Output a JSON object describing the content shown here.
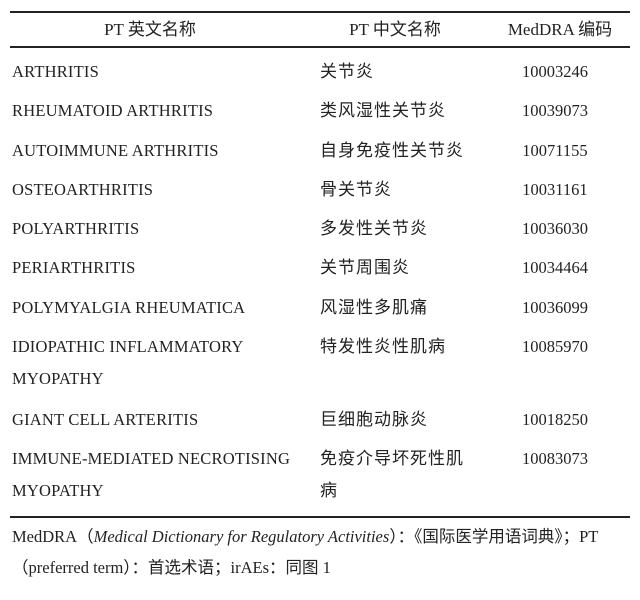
{
  "table": {
    "headers": [
      "PT 英文名称",
      "PT 中文名称",
      "MedDRA 编码"
    ],
    "rows": [
      {
        "en": "ARTHRITIS",
        "zh": "关节炎",
        "code": "10003246"
      },
      {
        "en": "RHEUMATOID ARTHRITIS",
        "zh": "类风湿性关节炎",
        "code": "10039073"
      },
      {
        "en": "AUTOIMMUNE ARTHRITIS",
        "zh": "自身免疫性关节炎",
        "code": "10071155"
      },
      {
        "en": "OSTEOARTHRITIS",
        "zh": "骨关节炎",
        "code": "10031161"
      },
      {
        "en": "POLYARTHRITIS",
        "zh": "多发性关节炎",
        "code": "10036030"
      },
      {
        "en": "PERIARTHRITIS",
        "zh": "关节周围炎",
        "code": "10034464"
      },
      {
        "en": "POLYMYALGIA RHEUMATICA",
        "zh": "风湿性多肌痛",
        "code": "10036099"
      },
      {
        "en": "IDIOPATHIC INFLAMMATORY MYOPATHY",
        "zh": "特发性炎性肌病",
        "code": "10085970"
      },
      {
        "en": "GIANT CELL ARTERITIS",
        "zh": "巨细胞动脉炎",
        "code": "10018250"
      },
      {
        "en": "IMMUNE-MEDIATED NECROTISING MYOPATHY",
        "zh": "免疫介导坏死性肌病",
        "code": "10083073"
      }
    ]
  },
  "note": {
    "part1": "MedDRA（",
    "italic": "Medical Dictionary for Regulatory Activities",
    "part2": "）：《国际医学用语词典》；PT（preferred term）：首选术语；irAEs：同图 1"
  }
}
